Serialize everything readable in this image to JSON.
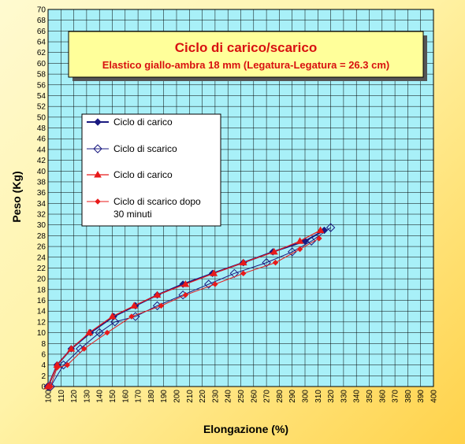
{
  "chart_data": {
    "type": "line",
    "title": "Ciclo di carico/scarico",
    "subtitle": "Elastico giallo-ambra 18 mm (Legatura-Legatura = 26.3 cm)",
    "xlabel": "Elongazione (%)",
    "ylabel": "Peso (Kg)",
    "xlim": [
      100,
      400
    ],
    "ylim": [
      0,
      70
    ],
    "x_tick_step": 10,
    "y_tick_step": 2,
    "grid": true,
    "legend_position": "upper-left",
    "plot_background": "#a8f0f8",
    "series": [
      {
        "name": "Ciclo di carico",
        "color": "#1a1a80",
        "marker": "diamond-filled",
        "points": [
          [
            100,
            0
          ],
          [
            107,
            4
          ],
          [
            118,
            7
          ],
          [
            133,
            10
          ],
          [
            151,
            13
          ],
          [
            168,
            15
          ],
          [
            185,
            17
          ],
          [
            205,
            19
          ],
          [
            228,
            21
          ],
          [
            252,
            23
          ],
          [
            275,
            25
          ],
          [
            300,
            27
          ],
          [
            315,
            29
          ]
        ]
      },
      {
        "name": "Ciclo di scarico",
        "color": "#1a1a80",
        "marker": "diamond-open",
        "points": [
          [
            100,
            0
          ],
          [
            102,
            0
          ],
          [
            112,
            4
          ],
          [
            125,
            7
          ],
          [
            140,
            10
          ],
          [
            152,
            12
          ],
          [
            168,
            13
          ],
          [
            185,
            15
          ],
          [
            205,
            17
          ],
          [
            225,
            19
          ],
          [
            245,
            21
          ],
          [
            270,
            23
          ],
          [
            290,
            25
          ],
          [
            305,
            27
          ],
          [
            320,
            29.5
          ]
        ]
      },
      {
        "name": "Ciclo di carico",
        "color": "#e81a1a",
        "marker": "triangle",
        "points": [
          [
            100,
            0
          ],
          [
            107,
            4
          ],
          [
            118,
            7
          ],
          [
            132,
            10
          ],
          [
            150,
            13
          ],
          [
            167,
            15
          ],
          [
            185,
            17
          ],
          [
            207,
            19
          ],
          [
            229,
            21
          ],
          [
            252,
            23
          ],
          [
            276,
            25
          ],
          [
            296,
            27
          ],
          [
            312,
            29
          ]
        ]
      },
      {
        "name": "Ciclo di scarico dopo 30 minuti",
        "color": "#e81a1a",
        "marker": "diamond-small",
        "points": [
          [
            100,
            0
          ],
          [
            102,
            0
          ],
          [
            107,
            3.5
          ],
          [
            115,
            4
          ],
          [
            128,
            7
          ],
          [
            146,
            10
          ],
          [
            165,
            13
          ],
          [
            188,
            15
          ],
          [
            207,
            17
          ],
          [
            230,
            19
          ],
          [
            252,
            21
          ],
          [
            277,
            23
          ],
          [
            296,
            25.5
          ],
          [
            311,
            27.5
          ]
        ]
      }
    ]
  }
}
